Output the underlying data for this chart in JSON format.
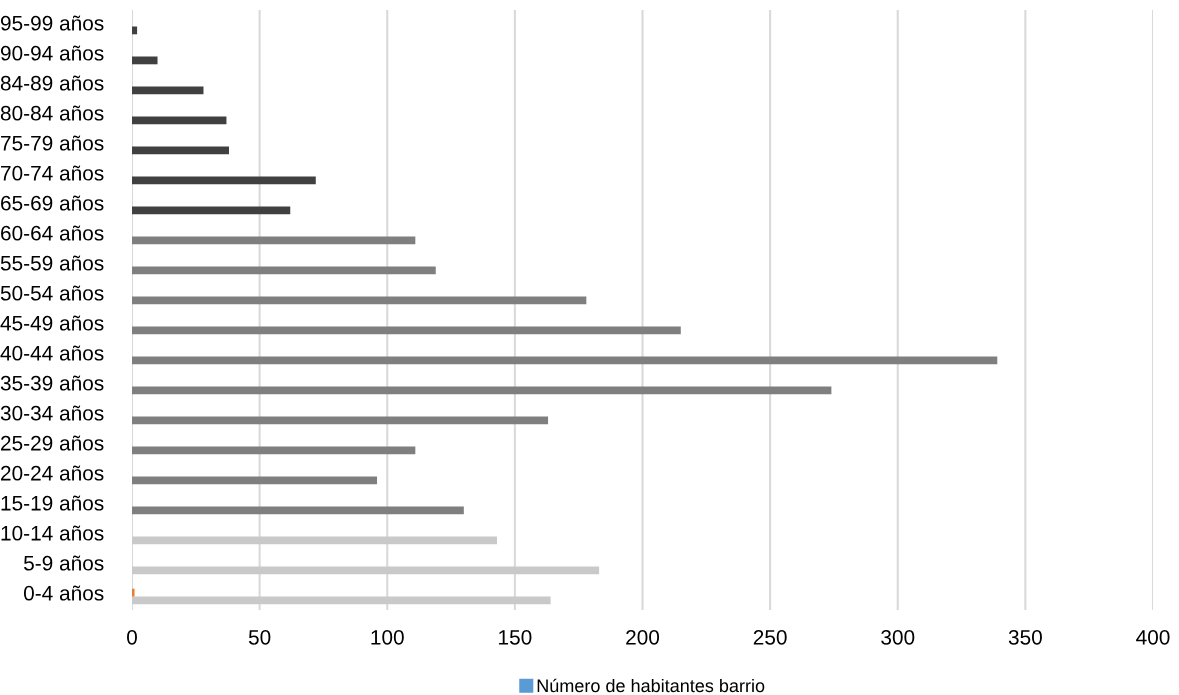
{
  "chart_data": {
    "type": "bar",
    "orientation": "horizontal",
    "categories": [
      "95-99 años",
      "90-94 años",
      "84-89 años",
      "80-84 años",
      "75-79 años",
      "70-74 años",
      "65-69 años",
      "60-64 años",
      "55-59 años",
      "50-54 años",
      "45-49 años",
      "40-44 años",
      "35-39 años",
      "30-34 años",
      "25-29 años",
      "20-24 años",
      "15-19 años",
      "10-14 años",
      "5-9 años",
      "0-4 años"
    ],
    "series": [
      {
        "name": "Número de habitantes barrio",
        "color": "#5b9bd5",
        "values": [
          2,
          10,
          28,
          37,
          38,
          72,
          62,
          111,
          119,
          178,
          215,
          339,
          274,
          163,
          111,
          96,
          130,
          143,
          183,
          164
        ],
        "colors": [
          "#404040",
          "#404040",
          "#404040",
          "#404040",
          "#404040",
          "#404040",
          "#404040",
          "#7f7f7f",
          "#7f7f7f",
          "#7f7f7f",
          "#7f7f7f",
          "#7f7f7f",
          "#7f7f7f",
          "#7f7f7f",
          "#7f7f7f",
          "#7f7f7f",
          "#7f7f7f",
          "#c9c9c9",
          "#c9c9c9",
          "#c9c9c9"
        ]
      },
      {
        "color": "#ed7d31",
        "values": [
          null,
          null,
          null,
          null,
          null,
          null,
          null,
          null,
          null,
          null,
          null,
          null,
          null,
          null,
          null,
          null,
          null,
          null,
          null,
          1
        ]
      }
    ],
    "xlim": [
      0,
      400
    ],
    "xticks": [
      0,
      50,
      100,
      150,
      200,
      250,
      300,
      350,
      400
    ],
    "grid": "x",
    "legend": "bottom"
  }
}
